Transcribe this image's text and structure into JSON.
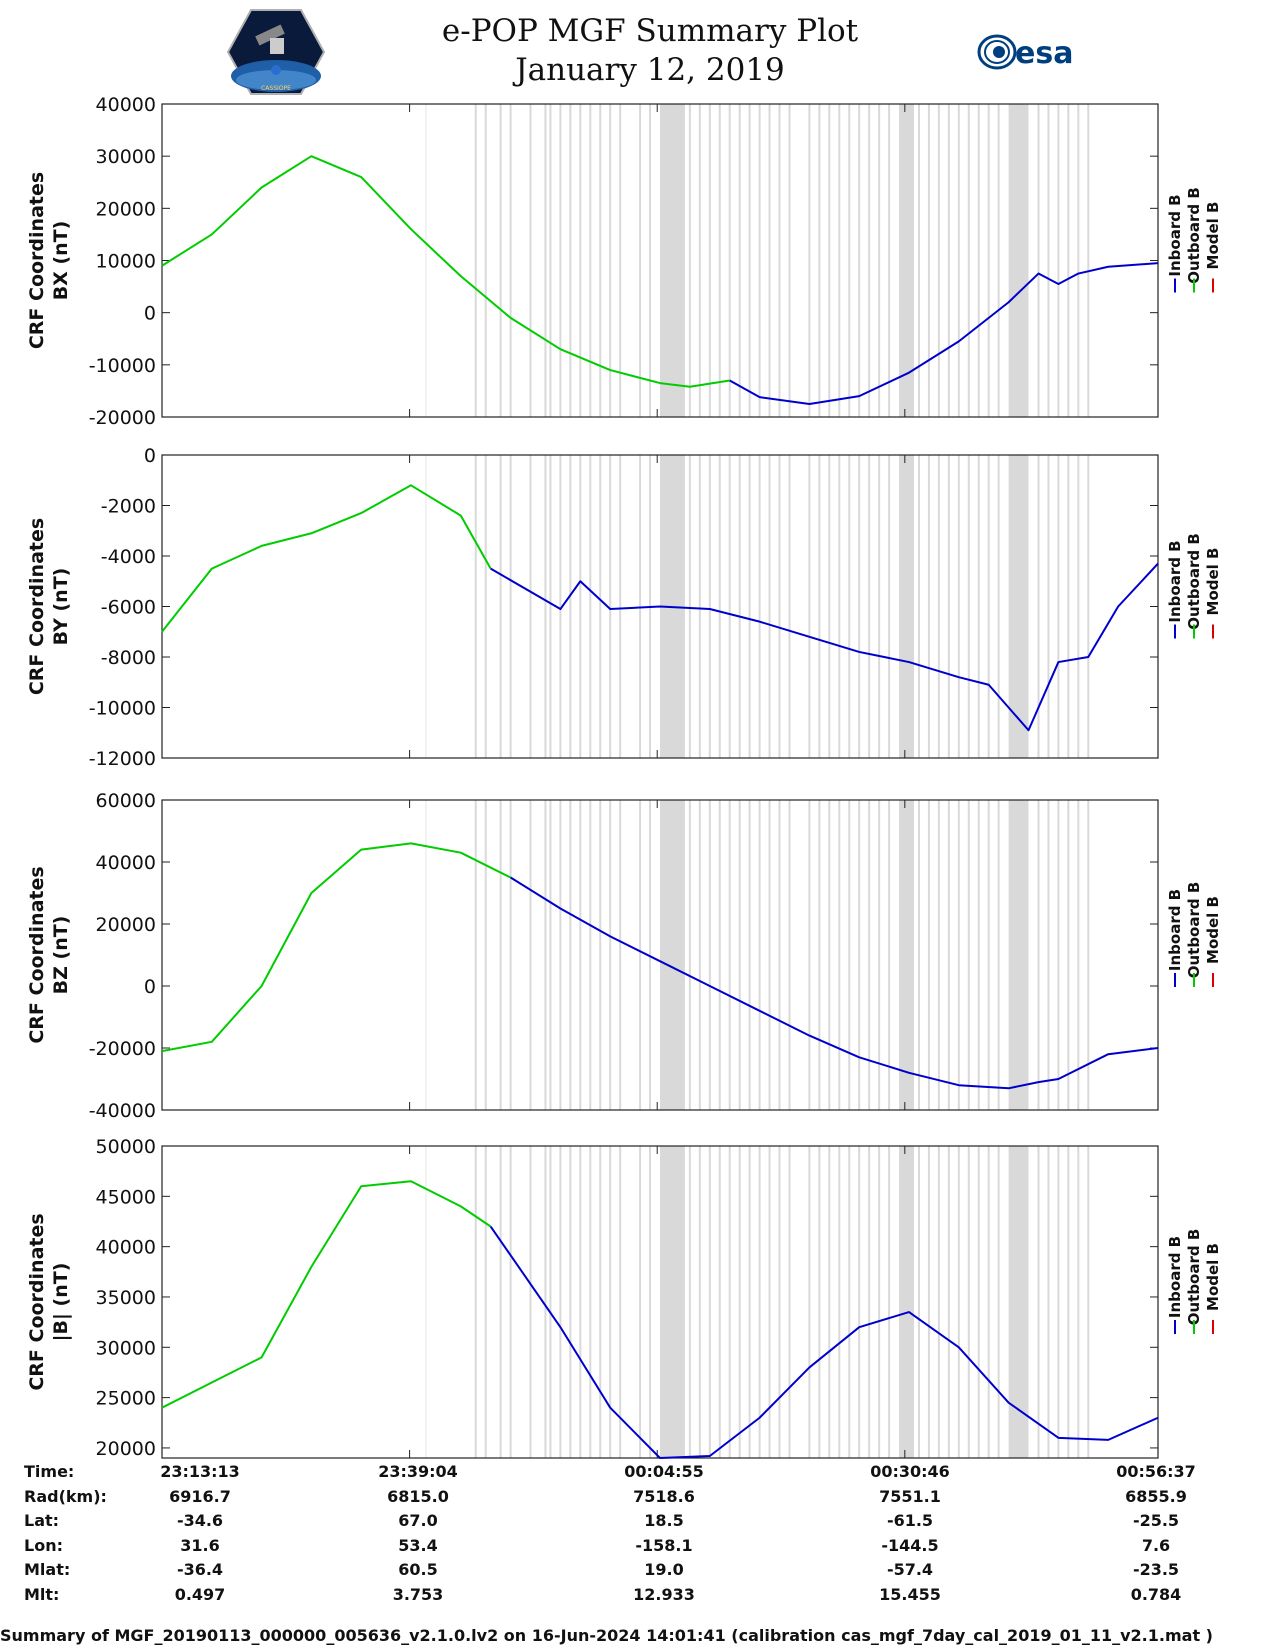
{
  "header": {
    "title_line1": "e-POP MGF Summary Plot",
    "title_line2": "January 12, 2019",
    "logo_left_label": "CASSIOPE",
    "logo_right_label": "esa"
  },
  "colors": {
    "inboard": "#0000cc",
    "outboard": "#00cc00",
    "model": "#dd0000",
    "gap_shade": "#d9d9d9",
    "tick_line": "#444444"
  },
  "legend": [
    "Inboard B",
    "Outboard B",
    "Model B"
  ],
  "chart_data": [
    {
      "type": "line",
      "ylabel_line1": "CRF Coordinates",
      "ylabel_line2": "BX (nT)",
      "ylim": [
        -20000,
        40000
      ],
      "yticks": [
        40000,
        30000,
        20000,
        10000,
        0,
        -10000,
        -20000
      ],
      "x": [
        0,
        10,
        20,
        30,
        40,
        50,
        60,
        70,
        80,
        90,
        100
      ],
      "series": [
        {
          "name": "Outboard B",
          "x": [
            0,
            5,
            10,
            15,
            20,
            25,
            30,
            35,
            40,
            45,
            50,
            53,
            57
          ],
          "values": [
            9000,
            15000,
            24000,
            30000,
            26000,
            16000,
            7000,
            -1000,
            -7000,
            -11000,
            -13500,
            -14200,
            -13000
          ]
        },
        {
          "name": "Inboard B",
          "x": [
            57,
            60,
            65,
            70,
            75,
            80,
            85,
            88,
            90,
            92,
            95,
            100
          ],
          "values": [
            -13000,
            -16200,
            -17500,
            -16000,
            -11500,
            -5500,
            2000,
            7500,
            5500,
            7500,
            8800,
            9500
          ]
        }
      ]
    },
    {
      "type": "line",
      "ylabel_line1": "CRF Coordinates",
      "ylabel_line2": "BY (nT)",
      "ylim": [
        -12000,
        0
      ],
      "yticks": [
        0,
        -2000,
        -4000,
        -6000,
        -8000,
        -10000,
        -12000
      ],
      "x": [
        0,
        10,
        20,
        30,
        40,
        50,
        60,
        70,
        80,
        90,
        100
      ],
      "series": [
        {
          "name": "Outboard B",
          "x": [
            0,
            5,
            10,
            15,
            20,
            25,
            30,
            33
          ],
          "values": [
            -7000,
            -4500,
            -3600,
            -3100,
            -2300,
            -1200,
            -2400,
            -4500
          ]
        },
        {
          "name": "Inboard B",
          "x": [
            33,
            40,
            42,
            45,
            50,
            55,
            60,
            65,
            70,
            75,
            80,
            83,
            87,
            90,
            93,
            96,
            100
          ],
          "values": [
            -4500,
            -6100,
            -5000,
            -6100,
            -6000,
            -6100,
            -6600,
            -7200,
            -7800,
            -8200,
            -8800,
            -9100,
            -10900,
            -8200,
            -8000,
            -6000,
            -4300
          ]
        }
      ]
    },
    {
      "type": "line",
      "ylabel_line1": "CRF Coordinates",
      "ylabel_line2": "BZ (nT)",
      "ylim": [
        -40000,
        60000
      ],
      "yticks": [
        60000,
        40000,
        20000,
        0,
        -20000,
        -40000
      ],
      "x": [
        0,
        10,
        20,
        30,
        40,
        50,
        60,
        70,
        80,
        90,
        100
      ],
      "series": [
        {
          "name": "Outboard B",
          "x": [
            0,
            5,
            10,
            15,
            20,
            25,
            30,
            35
          ],
          "values": [
            -21000,
            -18000,
            0,
            30000,
            44000,
            46000,
            43000,
            35000
          ]
        },
        {
          "name": "Inboard B",
          "x": [
            35,
            40,
            45,
            50,
            55,
            60,
            65,
            70,
            75,
            80,
            85,
            88,
            90,
            95,
            100
          ],
          "values": [
            35000,
            25000,
            16000,
            8000,
            0,
            -8000,
            -16000,
            -23000,
            -28000,
            -32000,
            -33000,
            -31000,
            -30000,
            -22000,
            -20000
          ]
        }
      ]
    },
    {
      "type": "line",
      "ylabel_line1": "CRF Coordinates",
      "ylabel_line2": "|B| (nT)",
      "ylim": [
        19000,
        50000
      ],
      "yticks": [
        50000,
        45000,
        40000,
        35000,
        30000,
        25000,
        20000
      ],
      "x": [
        0,
        10,
        20,
        30,
        40,
        50,
        60,
        70,
        80,
        90,
        100
      ],
      "series": [
        {
          "name": "Outboard B",
          "x": [
            0,
            5,
            10,
            15,
            20,
            25,
            30,
            33
          ],
          "values": [
            24000,
            26500,
            29000,
            38000,
            46000,
            46500,
            44000,
            42000
          ]
        },
        {
          "name": "Inboard B",
          "x": [
            33,
            40,
            45,
            50,
            55,
            60,
            65,
            70,
            75,
            80,
            85,
            90,
            95,
            100
          ],
          "values": [
            42000,
            32000,
            24000,
            19000,
            19200,
            23000,
            28000,
            32000,
            33500,
            30000,
            24500,
            21000,
            20800,
            23000
          ]
        }
      ]
    }
  ],
  "gap_shading": {
    "wide_bands": [
      [
        50,
        52.5
      ],
      [
        74,
        75.5
      ],
      [
        85,
        87
      ]
    ],
    "thin_lines": [
      31.5,
      32.5,
      34,
      35,
      37,
      38.5,
      39,
      40,
      41,
      42,
      43,
      44,
      45,
      46,
      48,
      49,
      53,
      54,
      55,
      56,
      57,
      58,
      59,
      60,
      61,
      62,
      63,
      65,
      66,
      67,
      68,
      69,
      70,
      71,
      72,
      73,
      76,
      77,
      78,
      79,
      80,
      81,
      82,
      83,
      84,
      88,
      89,
      90,
      91,
      92,
      93
    ]
  },
  "x_ticks": [
    "23:13:13",
    "23:39:04",
    "00:04:55",
    "00:30:46",
    "00:56:37"
  ],
  "info_table": {
    "rows": [
      {
        "label": "Time:",
        "values": [
          "23:13:13",
          "23:39:04",
          "00:04:55",
          "00:30:46",
          "00:56:37"
        ]
      },
      {
        "label": "Rad(km):",
        "values": [
          "6916.7",
          "6815.0",
          "7518.6",
          "7551.1",
          "6855.9"
        ]
      },
      {
        "label": "Lat:",
        "values": [
          "-34.6",
          "67.0",
          "18.5",
          "-61.5",
          "-25.5"
        ]
      },
      {
        "label": "Lon:",
        "values": [
          "31.6",
          "53.4",
          "-158.1",
          "-144.5",
          "7.6"
        ]
      },
      {
        "label": "Mlat:",
        "values": [
          "-36.4",
          "60.5",
          "19.0",
          "-57.4",
          "-23.5"
        ]
      },
      {
        "label": "Mlt:",
        "values": [
          "0.497",
          "3.753",
          "12.933",
          "15.455",
          "0.784"
        ]
      }
    ]
  },
  "footer": "Summary of MGF_20190113_000000_005636_v2.1.0.lv2 on 16-Jun-2024 14:01:41 (calibration cas_mgf_7day_cal_2019_01_11_v2.1.mat )"
}
